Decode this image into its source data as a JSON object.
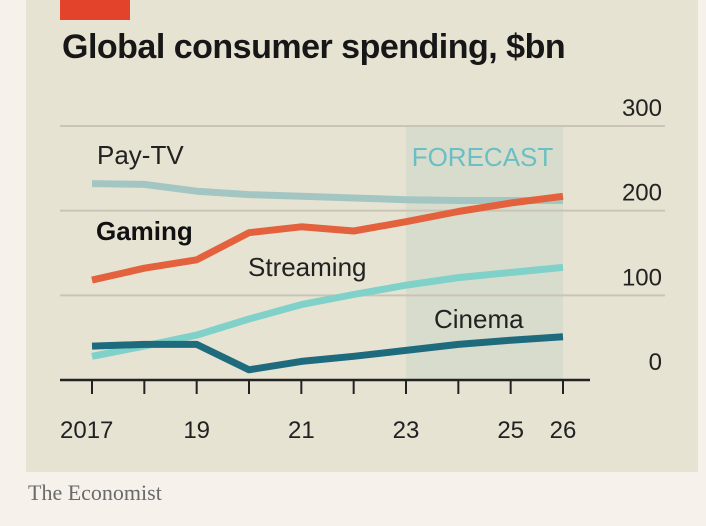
{
  "source": "The Economist",
  "colors": {
    "background": "#e7e3d3",
    "tag": "#e3432a",
    "forecast_band": "#d7dccc",
    "gridline": "#c8c4b6",
    "axis": "#222222"
  },
  "chart_data": {
    "type": "line",
    "title": "Global consumer spending, $bn",
    "xlabel": "",
    "ylabel": "",
    "x": [
      2017,
      2018,
      2019,
      2020,
      2021,
      2022,
      2023,
      2024,
      2025,
      2026
    ],
    "x_tick_values": [
      2017,
      2019,
      2021,
      2023,
      2025,
      2026
    ],
    "x_tick_labels": [
      "2017",
      "19",
      "21",
      "23",
      "25",
      "26"
    ],
    "ylim": [
      0,
      300
    ],
    "y_ticks": [
      0,
      100,
      200,
      300
    ],
    "y_axis_side": "right",
    "grid": true,
    "forecast": {
      "label": "FORECAST",
      "start": 2023,
      "end": 2026
    },
    "series": [
      {
        "name": "Pay-TV",
        "color": "#a3c6c3",
        "bold": false,
        "values": [
          232,
          231,
          223,
          219,
          217,
          215,
          213,
          212,
          212,
          212
        ]
      },
      {
        "name": "Gaming",
        "color": "#e4613d",
        "bold": true,
        "values": [
          118,
          132,
          142,
          174,
          181,
          176,
          187,
          199,
          209,
          217
        ]
      },
      {
        "name": "Streaming",
        "color": "#7fd1c9",
        "bold": false,
        "values": [
          28,
          40,
          53,
          72,
          89,
          101,
          112,
          121,
          127,
          133
        ]
      },
      {
        "name": "Cinema",
        "color": "#1f6b7e",
        "bold": false,
        "values": [
          40,
          42,
          42,
          12,
          22,
          28,
          35,
          42,
          47,
          51
        ]
      }
    ]
  }
}
